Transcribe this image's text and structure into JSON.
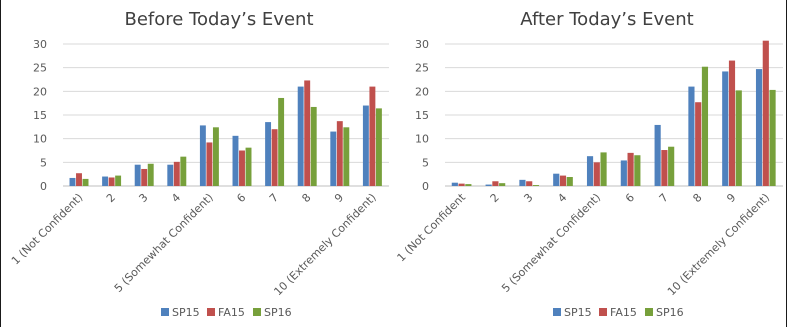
{
  "colors": {
    "SP15": "#4f81bd",
    "FA15": "#c0504d",
    "SP16": "#77a03b"
  },
  "chart_data": [
    {
      "type": "bar",
      "title": "Before Today’s Event",
      "ylim": [
        0,
        30
      ],
      "yticks": [
        "0",
        "5",
        "10",
        "15",
        "20",
        "25",
        "30"
      ],
      "grid": true,
      "legend_position": "bottom",
      "categories": [
        "1 (Not Confident)",
        "2",
        "3",
        "4",
        "5 (Somewhat Confident)",
        "6",
        "7",
        "8",
        "9",
        "10 (Extremely Confident)"
      ],
      "series": [
        {
          "name": "SP15",
          "values": [
            1.7,
            2.0,
            4.5,
            4.5,
            12.8,
            10.6,
            13.5,
            21.0,
            11.5,
            17.0
          ]
        },
        {
          "name": "FA15",
          "values": [
            2.7,
            1.8,
            3.6,
            5.1,
            9.2,
            7.5,
            12.0,
            22.3,
            13.7,
            21.0
          ]
        },
        {
          "name": "SP16",
          "values": [
            1.5,
            2.2,
            4.7,
            6.2,
            12.4,
            8.1,
            18.6,
            16.7,
            12.4,
            16.4
          ]
        }
      ]
    },
    {
      "type": "bar",
      "title": "After Today’s Event",
      "ylim": [
        0,
        30
      ],
      "yticks": [
        "0",
        "5",
        "10",
        "15",
        "20",
        "25",
        "30"
      ],
      "grid": true,
      "legend_position": "bottom",
      "categories": [
        "1 (Not Confident",
        "2",
        "3",
        "4",
        "5 (Somewhat Confident)",
        "6",
        "7",
        "8",
        "9",
        "10 (Extremely Confident)"
      ],
      "series": [
        {
          "name": "SP15",
          "values": [
            0.7,
            0.3,
            1.3,
            2.6,
            6.3,
            5.4,
            12.9,
            21.0,
            24.2,
            24.7
          ]
        },
        {
          "name": "FA15",
          "values": [
            0.5,
            1.0,
            1.0,
            2.2,
            5.0,
            7.0,
            7.6,
            17.7,
            26.5,
            30.7
          ]
        },
        {
          "name": "SP16",
          "values": [
            0.4,
            0.6,
            0.2,
            1.9,
            7.1,
            6.5,
            8.3,
            25.2,
            20.2,
            20.3
          ]
        }
      ]
    }
  ]
}
